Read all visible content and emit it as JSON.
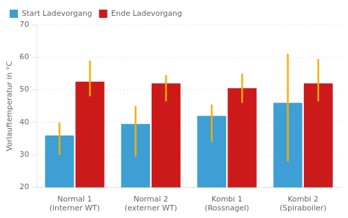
{
  "chart_data": {
    "type": "bar",
    "categories": [
      "Normal 1\n(interner WT)",
      "Normal 2\n(externer WT)",
      "Kombi 1\n(Rossnagel)",
      "Kombi 2\n(Spiraboiler)"
    ],
    "series": [
      {
        "name": "Start Ladevorgang",
        "color": "#3d9fd4",
        "values": [
          36.0,
          39.5,
          42.0,
          46.0
        ],
        "error": {
          "low": [
            6.0,
            10.0,
            8.0,
            18.0
          ],
          "high": [
            4.0,
            5.5,
            3.5,
            15.0
          ],
          "color": "#ffaa00"
        }
      },
      {
        "name": "Ende Ladevorgang",
        "color": "#cc1a1a",
        "values": [
          52.5,
          52.0,
          50.5,
          52.0
        ],
        "error": {
          "low": [
            4.5,
            5.5,
            4.5,
            5.5
          ],
          "high": [
            6.5,
            2.5,
            4.5,
            7.5
          ],
          "color": "#ffaa00"
        }
      }
    ],
    "ylabel": "Vorlauftemperatur in °C",
    "ylim": [
      20,
      70
    ],
    "yticks": [
      20,
      30,
      40,
      50,
      60,
      70
    ],
    "grid": true,
    "legend": "upper left"
  }
}
